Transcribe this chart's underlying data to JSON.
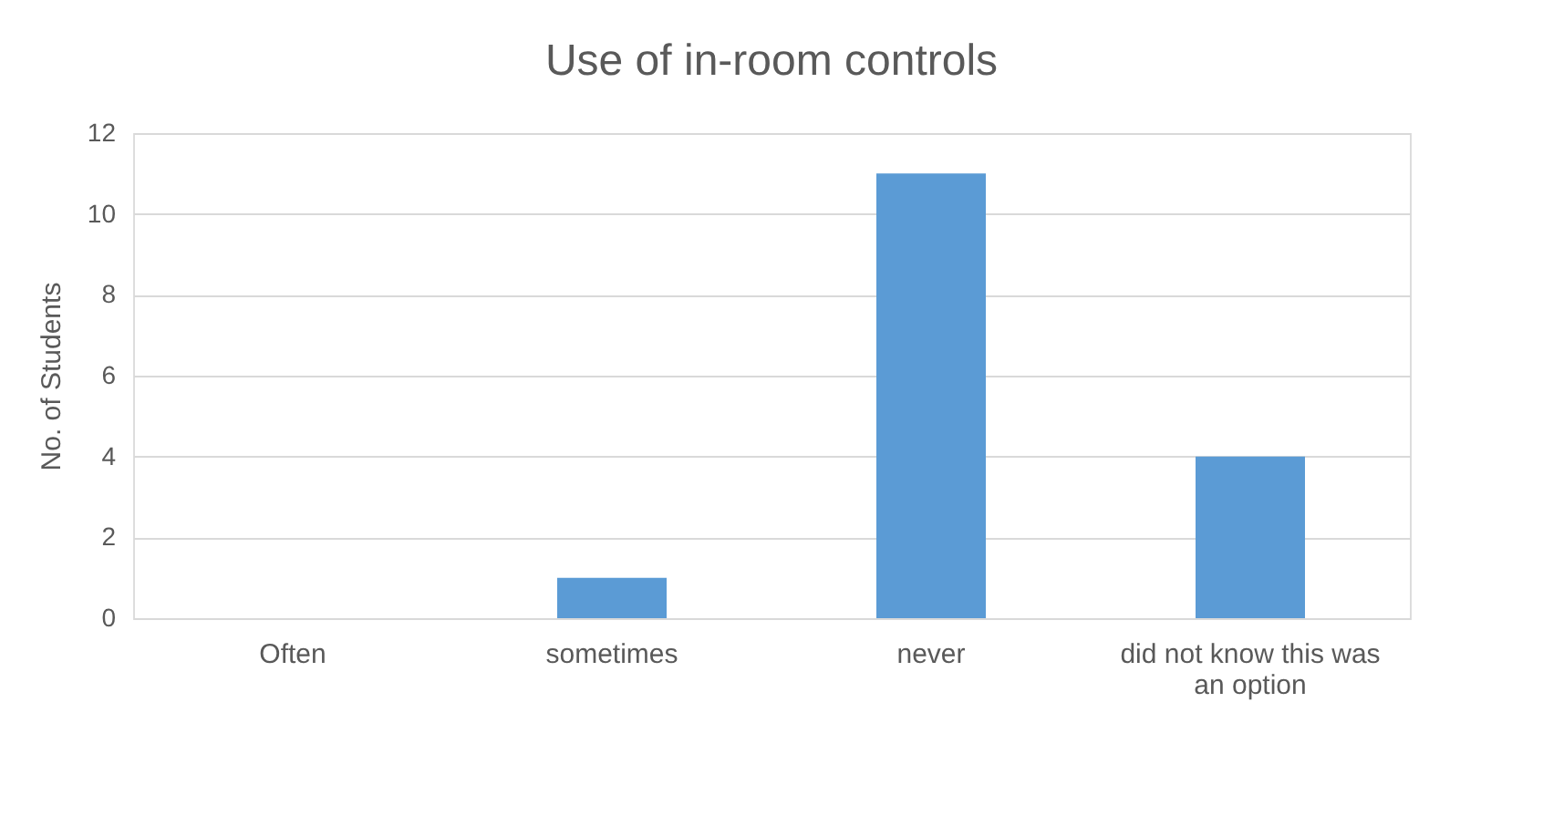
{
  "chart_data": {
    "type": "bar",
    "title": "Use of in-room controls",
    "ylabel": "No. of Students",
    "categories": [
      "Often",
      "sometimes",
      "never",
      "did not know this was an option"
    ],
    "values": [
      0,
      1,
      11,
      4
    ],
    "color": "#5b9bd5",
    "ylim": [
      0,
      12
    ],
    "yticks": [
      0,
      2,
      4,
      6,
      8,
      10,
      12
    ],
    "grid": "y"
  }
}
